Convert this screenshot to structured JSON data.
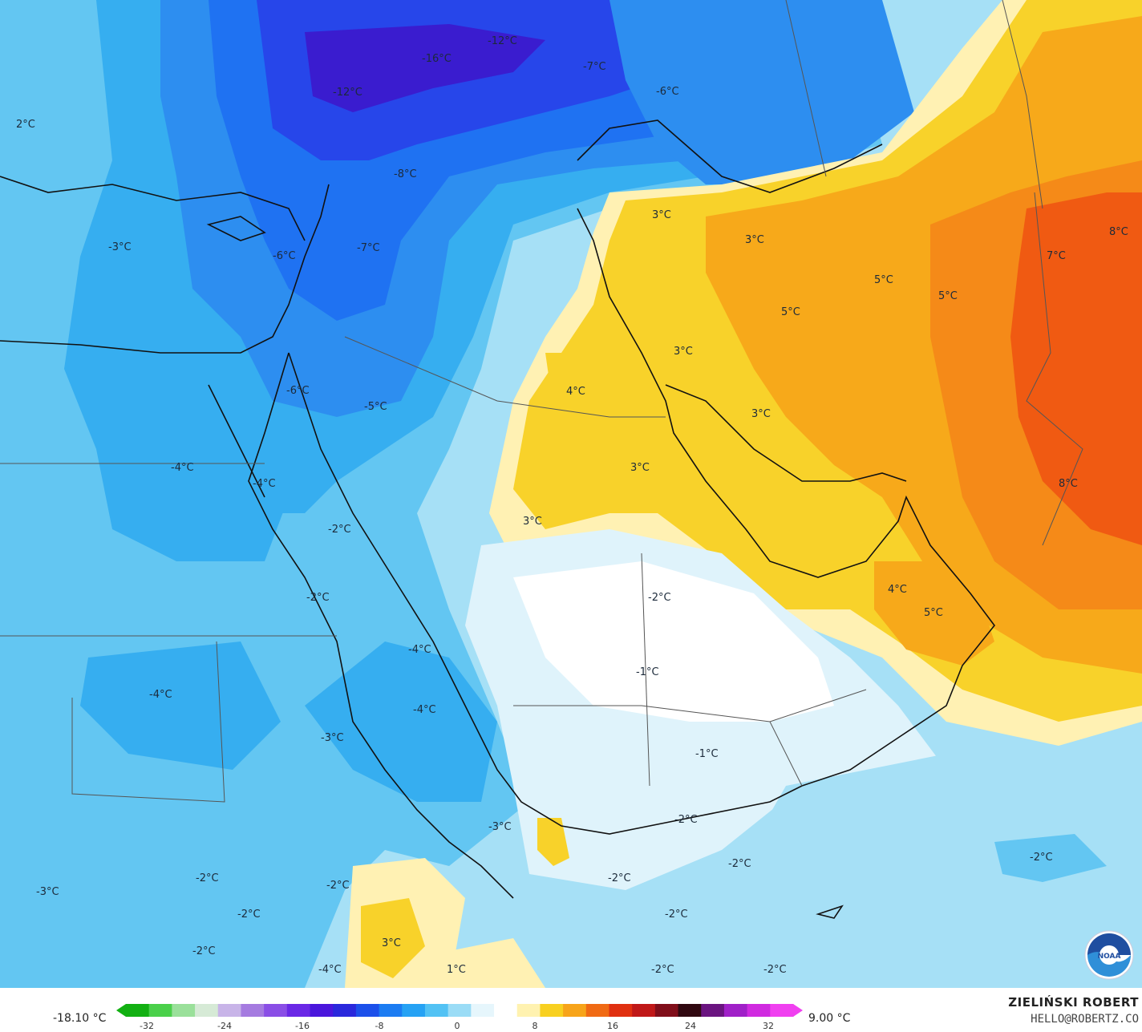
{
  "colors": {
    "t_m16": "#3a1ccf",
    "t_m12": "#2746ea",
    "t_m8": "#1f72f2",
    "t_m6": "#2d8ef0",
    "t_m4": "#36aef0",
    "t_m3": "#63c6f2",
    "t_m2": "#a6e0f6",
    "t_m1": "#dff3fb",
    "t_0": "#ffffff",
    "t_2": "#fff1b3",
    "t_3": "#f8d22a",
    "t_4": "#f7c21b",
    "t_5": "#f7a91a",
    "t_6": "#f58a18",
    "t_8": "#f05a12"
  },
  "map": {
    "labels": [
      {
        "text": "-12°C"
      },
      {
        "text": "-16°C"
      },
      {
        "text": "-7°C"
      },
      {
        "text": "-6°C"
      },
      {
        "text": "-12°C"
      },
      {
        "text": "2°C"
      },
      {
        "text": "-8°C"
      },
      {
        "text": "-3°C"
      },
      {
        "text": "-6°C"
      },
      {
        "text": "-7°C"
      },
      {
        "text": "3°C"
      },
      {
        "text": "3°C"
      },
      {
        "text": "5°C"
      },
      {
        "text": "5°C"
      },
      {
        "text": "5°C"
      },
      {
        "text": "7°C"
      },
      {
        "text": "8°C"
      },
      {
        "text": "3°C"
      },
      {
        "text": "4°C"
      },
      {
        "text": "-6°C"
      },
      {
        "text": "-5°C"
      },
      {
        "text": "3°C"
      },
      {
        "text": "3°C"
      },
      {
        "text": "-4°C"
      },
      {
        "text": "-4°C"
      },
      {
        "text": "3°C"
      },
      {
        "text": "-2°C"
      },
      {
        "text": "8°C"
      },
      {
        "text": "-2°C"
      },
      {
        "text": "-2°C"
      },
      {
        "text": "4°C"
      },
      {
        "text": "5°C"
      },
      {
        "text": "-4°C"
      },
      {
        "text": "-1°C"
      },
      {
        "text": "-4°C"
      },
      {
        "text": "-4°C"
      },
      {
        "text": "-3°C"
      },
      {
        "text": "-1°C"
      },
      {
        "text": "-3°C"
      },
      {
        "text": "-2°C"
      },
      {
        "text": "-2°C"
      },
      {
        "text": "-3°C"
      },
      {
        "text": "-2°C"
      },
      {
        "text": "-2°C"
      },
      {
        "text": "-2°C"
      },
      {
        "text": "-2°C"
      },
      {
        "text": "-2°C"
      },
      {
        "text": "-2°C"
      },
      {
        "text": "3°C"
      },
      {
        "text": "-2°C"
      },
      {
        "text": "-4°C"
      },
      {
        "text": "1°C"
      },
      {
        "text": "-2°C"
      },
      {
        "text": "-2°C"
      }
    ]
  },
  "legend": {
    "min_value": "-18.10 °C",
    "max_value": "9.00 °C",
    "ticks": [
      "-32",
      "-24",
      "-16",
      "-8",
      "0",
      "8",
      "16",
      "24",
      "32"
    ],
    "stops": [
      "#12b012",
      "#4ad04a",
      "#9ae09a",
      "#d6ead6",
      "#c8b4e8",
      "#a57be0",
      "#8a4ee6",
      "#6a28e6",
      "#4a16dc",
      "#2a28dc",
      "#1c50ea",
      "#1c7cf2",
      "#26a2f4",
      "#52c2f4",
      "#9adcf6",
      "#e6f6fc",
      "#ffffff",
      "#fff2b0",
      "#f8d020",
      "#f7a41a",
      "#f06a14",
      "#e03010",
      "#c01818",
      "#800e1a",
      "#300810",
      "#6a1480",
      "#a020c8",
      "#d02ae0",
      "#f040f0"
    ]
  },
  "credits": {
    "author": "ZIELIŃSKI ROBERT",
    "email": "HELLO@ROBERTZ.CO",
    "logo": "NOAA"
  }
}
